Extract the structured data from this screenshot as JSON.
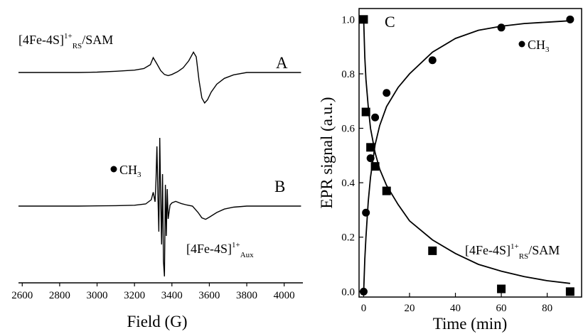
{
  "chart_data": [
    {
      "type": "line",
      "panel": "left",
      "xlabel": "Field (G)",
      "ylabel": "",
      "xlim": [
        2580,
        4100
      ],
      "x_ticks": [
        "2600",
        "2800",
        "3000",
        "3200",
        "3400",
        "3600",
        "3800",
        "4000"
      ],
      "grid": false,
      "traces": [
        {
          "name": "A",
          "label": "A",
          "annotation": {
            "main": "[4Fe-4S]",
            "sup": "1+",
            "sub": "RS",
            "suffix": "/SAM"
          },
          "x": [
            2580,
            2700,
            2800,
            2900,
            3000,
            3100,
            3200,
            3250,
            3285,
            3300,
            3320,
            3340,
            3360,
            3380,
            3400,
            3430,
            3460,
            3490,
            3515,
            3530,
            3545,
            3560,
            3575,
            3590,
            3610,
            3640,
            3680,
            3730,
            3800,
            3900,
            4000,
            4090
          ],
          "y": [
            0.0,
            0.0,
            0.0,
            0.0,
            0.01,
            0.03,
            0.06,
            0.1,
            0.2,
            0.38,
            0.22,
            0.05,
            -0.05,
            -0.08,
            -0.05,
            0.02,
            0.12,
            0.3,
            0.52,
            0.4,
            -0.2,
            -0.65,
            -0.78,
            -0.7,
            -0.5,
            -0.3,
            -0.15,
            -0.06,
            0.0,
            0.0,
            0.0,
            0.0
          ]
        },
        {
          "name": "B",
          "label": "B",
          "annotation": {
            "main": "[4Fe-4S]",
            "sup": "1+",
            "sub": "Aux"
          },
          "radical_label": "CH",
          "radical_sub": "3",
          "x": [
            2580,
            2700,
            2800,
            2900,
            3000,
            3100,
            3200,
            3260,
            3290,
            3300,
            3310,
            3315,
            3320,
            3325,
            3330,
            3335,
            3340,
            3345,
            3350,
            3355,
            3360,
            3365,
            3370,
            3375,
            3380,
            3390,
            3400,
            3420,
            3450,
            3480,
            3510,
            3540,
            3560,
            3580,
            3600,
            3640,
            3680,
            3730,
            3800,
            3900,
            4000,
            4090
          ],
          "y": [
            0.0,
            0.0,
            0.0,
            0.0,
            0.01,
            0.02,
            0.04,
            0.1,
            0.3,
            0.65,
            0.2,
            1.2,
            2.8,
            0.5,
            -1.2,
            3.2,
            0.4,
            -1.8,
            1.5,
            -2.6,
            -3.3,
            1.0,
            -1.4,
            0.8,
            -0.6,
            0.05,
            0.15,
            0.22,
            0.12,
            0.05,
            0.0,
            -0.3,
            -0.55,
            -0.62,
            -0.52,
            -0.3,
            -0.14,
            -0.05,
            0.0,
            0.0,
            0.0,
            0.0
          ]
        }
      ]
    },
    {
      "type": "scatter",
      "panel": "right",
      "panel_letter": "C",
      "xlabel": "Time (min)",
      "ylabel": "EPR signal (a.u.)",
      "xlim": [
        -2,
        95
      ],
      "ylim": [
        -0.02,
        1.04
      ],
      "x_ticks": [
        "0",
        "20",
        "40",
        "60",
        "80"
      ],
      "y_ticks": [
        "0.0",
        "0.2",
        "0.4",
        "0.6",
        "0.8",
        "1.0"
      ],
      "grid": false,
      "series": [
        {
          "name": "CH3",
          "legend_main": "CH",
          "legend_sub": "3",
          "marker": "circle",
          "x": [
            0,
            1,
            3,
            5,
            10,
            30,
            60,
            90
          ],
          "y": [
            0.0,
            0.29,
            0.49,
            0.64,
            0.73,
            0.85,
            0.97,
            1.0
          ],
          "fit": {
            "model": "rising",
            "x": [
              0,
              0.5,
              1,
              2,
              3,
              5,
              7,
              10,
              15,
              20,
              30,
              40,
              50,
              60,
              70,
              80,
              90
            ],
            "y": [
              0.0,
              0.12,
              0.2,
              0.33,
              0.42,
              0.54,
              0.61,
              0.68,
              0.75,
              0.8,
              0.88,
              0.93,
              0.96,
              0.975,
              0.985,
              0.99,
              0.995
            ]
          }
        },
        {
          "name": "[4Fe-4S]1+RS/SAM",
          "legend_main": "[4Fe-4S]",
          "legend_sup": "1+",
          "legend_sub": "RS",
          "legend_suffix": "/SAM",
          "marker": "square",
          "x": [
            0,
            1,
            3,
            5,
            10,
            30,
            60,
            90
          ],
          "y": [
            1.0,
            0.66,
            0.53,
            0.46,
            0.37,
            0.15,
            0.01,
            0.0
          ],
          "fit": {
            "model": "decay",
            "x": [
              0,
              0.5,
              1,
              2,
              3,
              5,
              7,
              10,
              15,
              20,
              30,
              40,
              50,
              60,
              70,
              80,
              90
            ],
            "y": [
              1.0,
              0.86,
              0.78,
              0.68,
              0.6,
              0.51,
              0.45,
              0.39,
              0.32,
              0.26,
              0.19,
              0.14,
              0.1,
              0.075,
              0.055,
              0.04,
              0.03
            ]
          }
        }
      ]
    }
  ]
}
